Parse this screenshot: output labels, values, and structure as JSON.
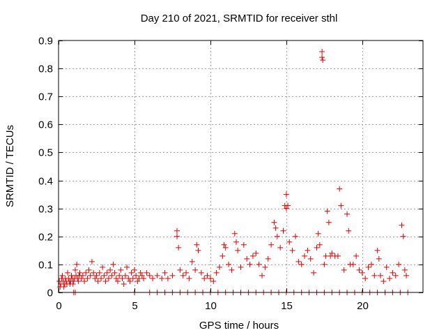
{
  "chart_data": {
    "type": "scatter",
    "title": "Day 210 of 2021, SRMTID for receiver sthl",
    "xlabel": "GPS time / hours",
    "ylabel": "SRMTID / TECUs",
    "xlim": [
      0,
      24
    ],
    "ylim": [
      0,
      0.9
    ],
    "xticks": [
      0,
      5,
      10,
      15,
      20
    ],
    "yticks": [
      0,
      0.1,
      0.2,
      0.3,
      0.4,
      0.5,
      0.6,
      0.7,
      0.8,
      0.9
    ],
    "xtick_labels": [
      "0",
      "5",
      "10",
      "15",
      "20"
    ],
    "ytick_labels": [
      "0",
      "0.1",
      "0.2",
      "0.3",
      "0.4",
      "0.5",
      "0.6",
      "0.7",
      "0.8",
      "0.9"
    ],
    "grid": true,
    "marker": "+",
    "color": "#e00000",
    "series": [
      {
        "name": "SRMTID",
        "points": [
          [
            0.05,
            0.04
          ],
          [
            0.1,
            0.02
          ],
          [
            0.15,
            0.03
          ],
          [
            0.2,
            0.05
          ],
          [
            0.25,
            0.06
          ],
          [
            0.3,
            0.04
          ],
          [
            0.35,
            0.02
          ],
          [
            0.4,
            0.03
          ],
          [
            0.45,
            0.05
          ],
          [
            0.5,
            0.04
          ],
          [
            0.55,
            0.03
          ],
          [
            0.6,
            0.07
          ],
          [
            0.65,
            0.05
          ],
          [
            0.7,
            0.04
          ],
          [
            0.75,
            0.03
          ],
          [
            0.8,
            0.04
          ],
          [
            0.85,
            0.06
          ],
          [
            0.9,
            0.05
          ],
          [
            0.95,
            0.03
          ],
          [
            1.0,
            0.04
          ],
          [
            1.05,
            0.05
          ],
          [
            1.1,
            0.08
          ],
          [
            1.15,
            0.06
          ],
          [
            1.2,
            0.1
          ],
          [
            1.25,
            0.05
          ],
          [
            1.3,
            0.04
          ],
          [
            1.35,
            0.06
          ],
          [
            1.4,
            0.07
          ],
          [
            1.5,
            0.05
          ],
          [
            1.6,
            0.06
          ],
          [
            1.7,
            0.04
          ],
          [
            1.8,
            0.07
          ],
          [
            1.9,
            0.05
          ],
          [
            2.0,
            0.08
          ],
          [
            2.1,
            0.06
          ],
          [
            2.2,
            0.11
          ],
          [
            2.3,
            0.07
          ],
          [
            2.4,
            0.05
          ],
          [
            2.5,
            0.06
          ],
          [
            2.6,
            0.04
          ],
          [
            2.7,
            0.07
          ],
          [
            2.8,
            0.05
          ],
          [
            2.9,
            0.09
          ],
          [
            3.0,
            0.06
          ],
          [
            3.1,
            0.04
          ],
          [
            3.2,
            0.07
          ],
          [
            3.3,
            0.05
          ],
          [
            3.4,
            0.08
          ],
          [
            3.5,
            0.06
          ],
          [
            3.6,
            0.1
          ],
          [
            3.7,
            0.07
          ],
          [
            3.8,
            0.05
          ],
          [
            3.9,
            0.04
          ],
          [
            4.0,
            0.06
          ],
          [
            4.1,
            0.08
          ],
          [
            4.2,
            0.05
          ],
          [
            4.3,
            0.03
          ],
          [
            4.4,
            0.06
          ],
          [
            4.5,
            0.09
          ],
          [
            4.6,
            0.05
          ],
          [
            4.7,
            0.04
          ],
          [
            4.8,
            0.07
          ],
          [
            4.9,
            0.05
          ],
          [
            5.0,
            0.08
          ],
          [
            5.1,
            0.06
          ],
          [
            5.2,
            0.04
          ],
          [
            5.3,
            0.05
          ],
          [
            5.4,
            0.07
          ],
          [
            5.5,
            0.06
          ],
          [
            5.6,
            0.05
          ],
          [
            5.8,
            0.07
          ],
          [
            6.0,
            0.06
          ],
          [
            6.2,
            0.05
          ],
          [
            6.5,
            0.06
          ],
          [
            6.8,
            0.05
          ],
          [
            7.0,
            0.07
          ],
          [
            7.2,
            0.05
          ],
          [
            7.5,
            0.06
          ],
          [
            7.8,
            0.22
          ],
          [
            7.8,
            0.2
          ],
          [
            7.9,
            0.16
          ],
          [
            8.0,
            0.08
          ],
          [
            8.2,
            0.06
          ],
          [
            8.4,
            0.07
          ],
          [
            8.6,
            0.05
          ],
          [
            8.8,
            0.11
          ],
          [
            9.0,
            0.08
          ],
          [
            9.1,
            0.17
          ],
          [
            9.2,
            0.15
          ],
          [
            9.4,
            0.07
          ],
          [
            9.6,
            0.05
          ],
          [
            9.8,
            0.06
          ],
          [
            10.0,
            0.05
          ],
          [
            10.2,
            0.04
          ],
          [
            10.4,
            0.07
          ],
          [
            10.6,
            0.09
          ],
          [
            10.8,
            0.13
          ],
          [
            10.9,
            0.17
          ],
          [
            11.0,
            0.16
          ],
          [
            11.2,
            0.1
          ],
          [
            11.4,
            0.08
          ],
          [
            11.6,
            0.21
          ],
          [
            11.7,
            0.18
          ],
          [
            11.8,
            0.15
          ],
          [
            12.0,
            0.09
          ],
          [
            12.2,
            0.17
          ],
          [
            12.4,
            0.12
          ],
          [
            12.6,
            0.1
          ],
          [
            12.8,
            0.13
          ],
          [
            13.0,
            0.14
          ],
          [
            13.2,
            0.1
          ],
          [
            13.4,
            0.06
          ],
          [
            13.6,
            0.09
          ],
          [
            13.8,
            0.12
          ],
          [
            14.0,
            0.17
          ],
          [
            14.2,
            0.25
          ],
          [
            14.3,
            0.23
          ],
          [
            14.4,
            0.2
          ],
          [
            14.6,
            0.16
          ],
          [
            14.8,
            0.22
          ],
          [
            14.9,
            0.31
          ],
          [
            15.0,
            0.35
          ],
          [
            15.0,
            0.3
          ],
          [
            15.1,
            0.31
          ],
          [
            15.2,
            0.18
          ],
          [
            15.4,
            0.15
          ],
          [
            15.6,
            0.2
          ],
          [
            15.8,
            0.11
          ],
          [
            16.0,
            0.1
          ],
          [
            16.2,
            0.13
          ],
          [
            16.4,
            0.15
          ],
          [
            16.6,
            0.12
          ],
          [
            16.8,
            0.07
          ],
          [
            17.0,
            0.16
          ],
          [
            17.1,
            0.21
          ],
          [
            17.2,
            0.17
          ],
          [
            17.35,
            0.86
          ],
          [
            17.35,
            0.84
          ],
          [
            17.4,
            0.83
          ],
          [
            17.5,
            0.1
          ],
          [
            17.6,
            0.13
          ],
          [
            17.7,
            0.29
          ],
          [
            17.8,
            0.25
          ],
          [
            17.9,
            0.13
          ],
          [
            18.0,
            0.14
          ],
          [
            18.2,
            0.13
          ],
          [
            18.4,
            0.13
          ],
          [
            18.5,
            0.37
          ],
          [
            18.6,
            0.31
          ],
          [
            18.8,
            0.08
          ],
          [
            19.0,
            0.28
          ],
          [
            19.1,
            0.22
          ],
          [
            19.2,
            0.1
          ],
          [
            19.4,
            0.1
          ],
          [
            19.6,
            0.13
          ],
          [
            19.8,
            0.08
          ],
          [
            20.0,
            0.07
          ],
          [
            20.2,
            0.05
          ],
          [
            20.4,
            0.09
          ],
          [
            20.6,
            0.1
          ],
          [
            20.8,
            0.06
          ],
          [
            21.0,
            0.15
          ],
          [
            21.1,
            0.12
          ],
          [
            21.2,
            0.06
          ],
          [
            21.4,
            0.04
          ],
          [
            21.6,
            0.09
          ],
          [
            21.8,
            0.05
          ],
          [
            22.0,
            0.07
          ],
          [
            22.2,
            0.06
          ],
          [
            22.4,
            0.1
          ],
          [
            22.6,
            0.24
          ],
          [
            22.7,
            0.2
          ],
          [
            22.8,
            0.08
          ],
          [
            22.9,
            0.06
          ],
          [
            1.0,
            0.0
          ],
          [
            1.1,
            0.0
          ],
          [
            5.0,
            0.0
          ],
          [
            6.0,
            0.0
          ],
          [
            6.5,
            0.0
          ],
          [
            7.0,
            0.0
          ],
          [
            7.5,
            0.0
          ],
          [
            8.0,
            0.0
          ],
          [
            8.5,
            0.0
          ],
          [
            9.0,
            0.0
          ],
          [
            9.5,
            0.0
          ],
          [
            10.0,
            0.0
          ],
          [
            10.5,
            0.0
          ],
          [
            11.0,
            0.0
          ],
          [
            11.5,
            0.0
          ],
          [
            12.0,
            0.0
          ],
          [
            12.5,
            0.0
          ],
          [
            13.0,
            0.0
          ],
          [
            13.5,
            0.0
          ],
          [
            14.0,
            0.0
          ],
          [
            14.5,
            0.0
          ],
          [
            15.0,
            0.0
          ],
          [
            15.5,
            0.0
          ],
          [
            16.0,
            0.0
          ],
          [
            16.5,
            0.0
          ],
          [
            17.0,
            0.0
          ],
          [
            17.5,
            0.0
          ],
          [
            18.0,
            0.0
          ],
          [
            18.5,
            0.0
          ],
          [
            19.0,
            0.0
          ],
          [
            19.5,
            0.0
          ],
          [
            20.0,
            0.0
          ],
          [
            20.5,
            0.0
          ],
          [
            21.0,
            0.0
          ],
          [
            21.5,
            0.0
          ],
          [
            22.0,
            0.0
          ],
          [
            22.5,
            0.0
          ],
          [
            23.0,
            0.0
          ]
        ]
      }
    ]
  }
}
